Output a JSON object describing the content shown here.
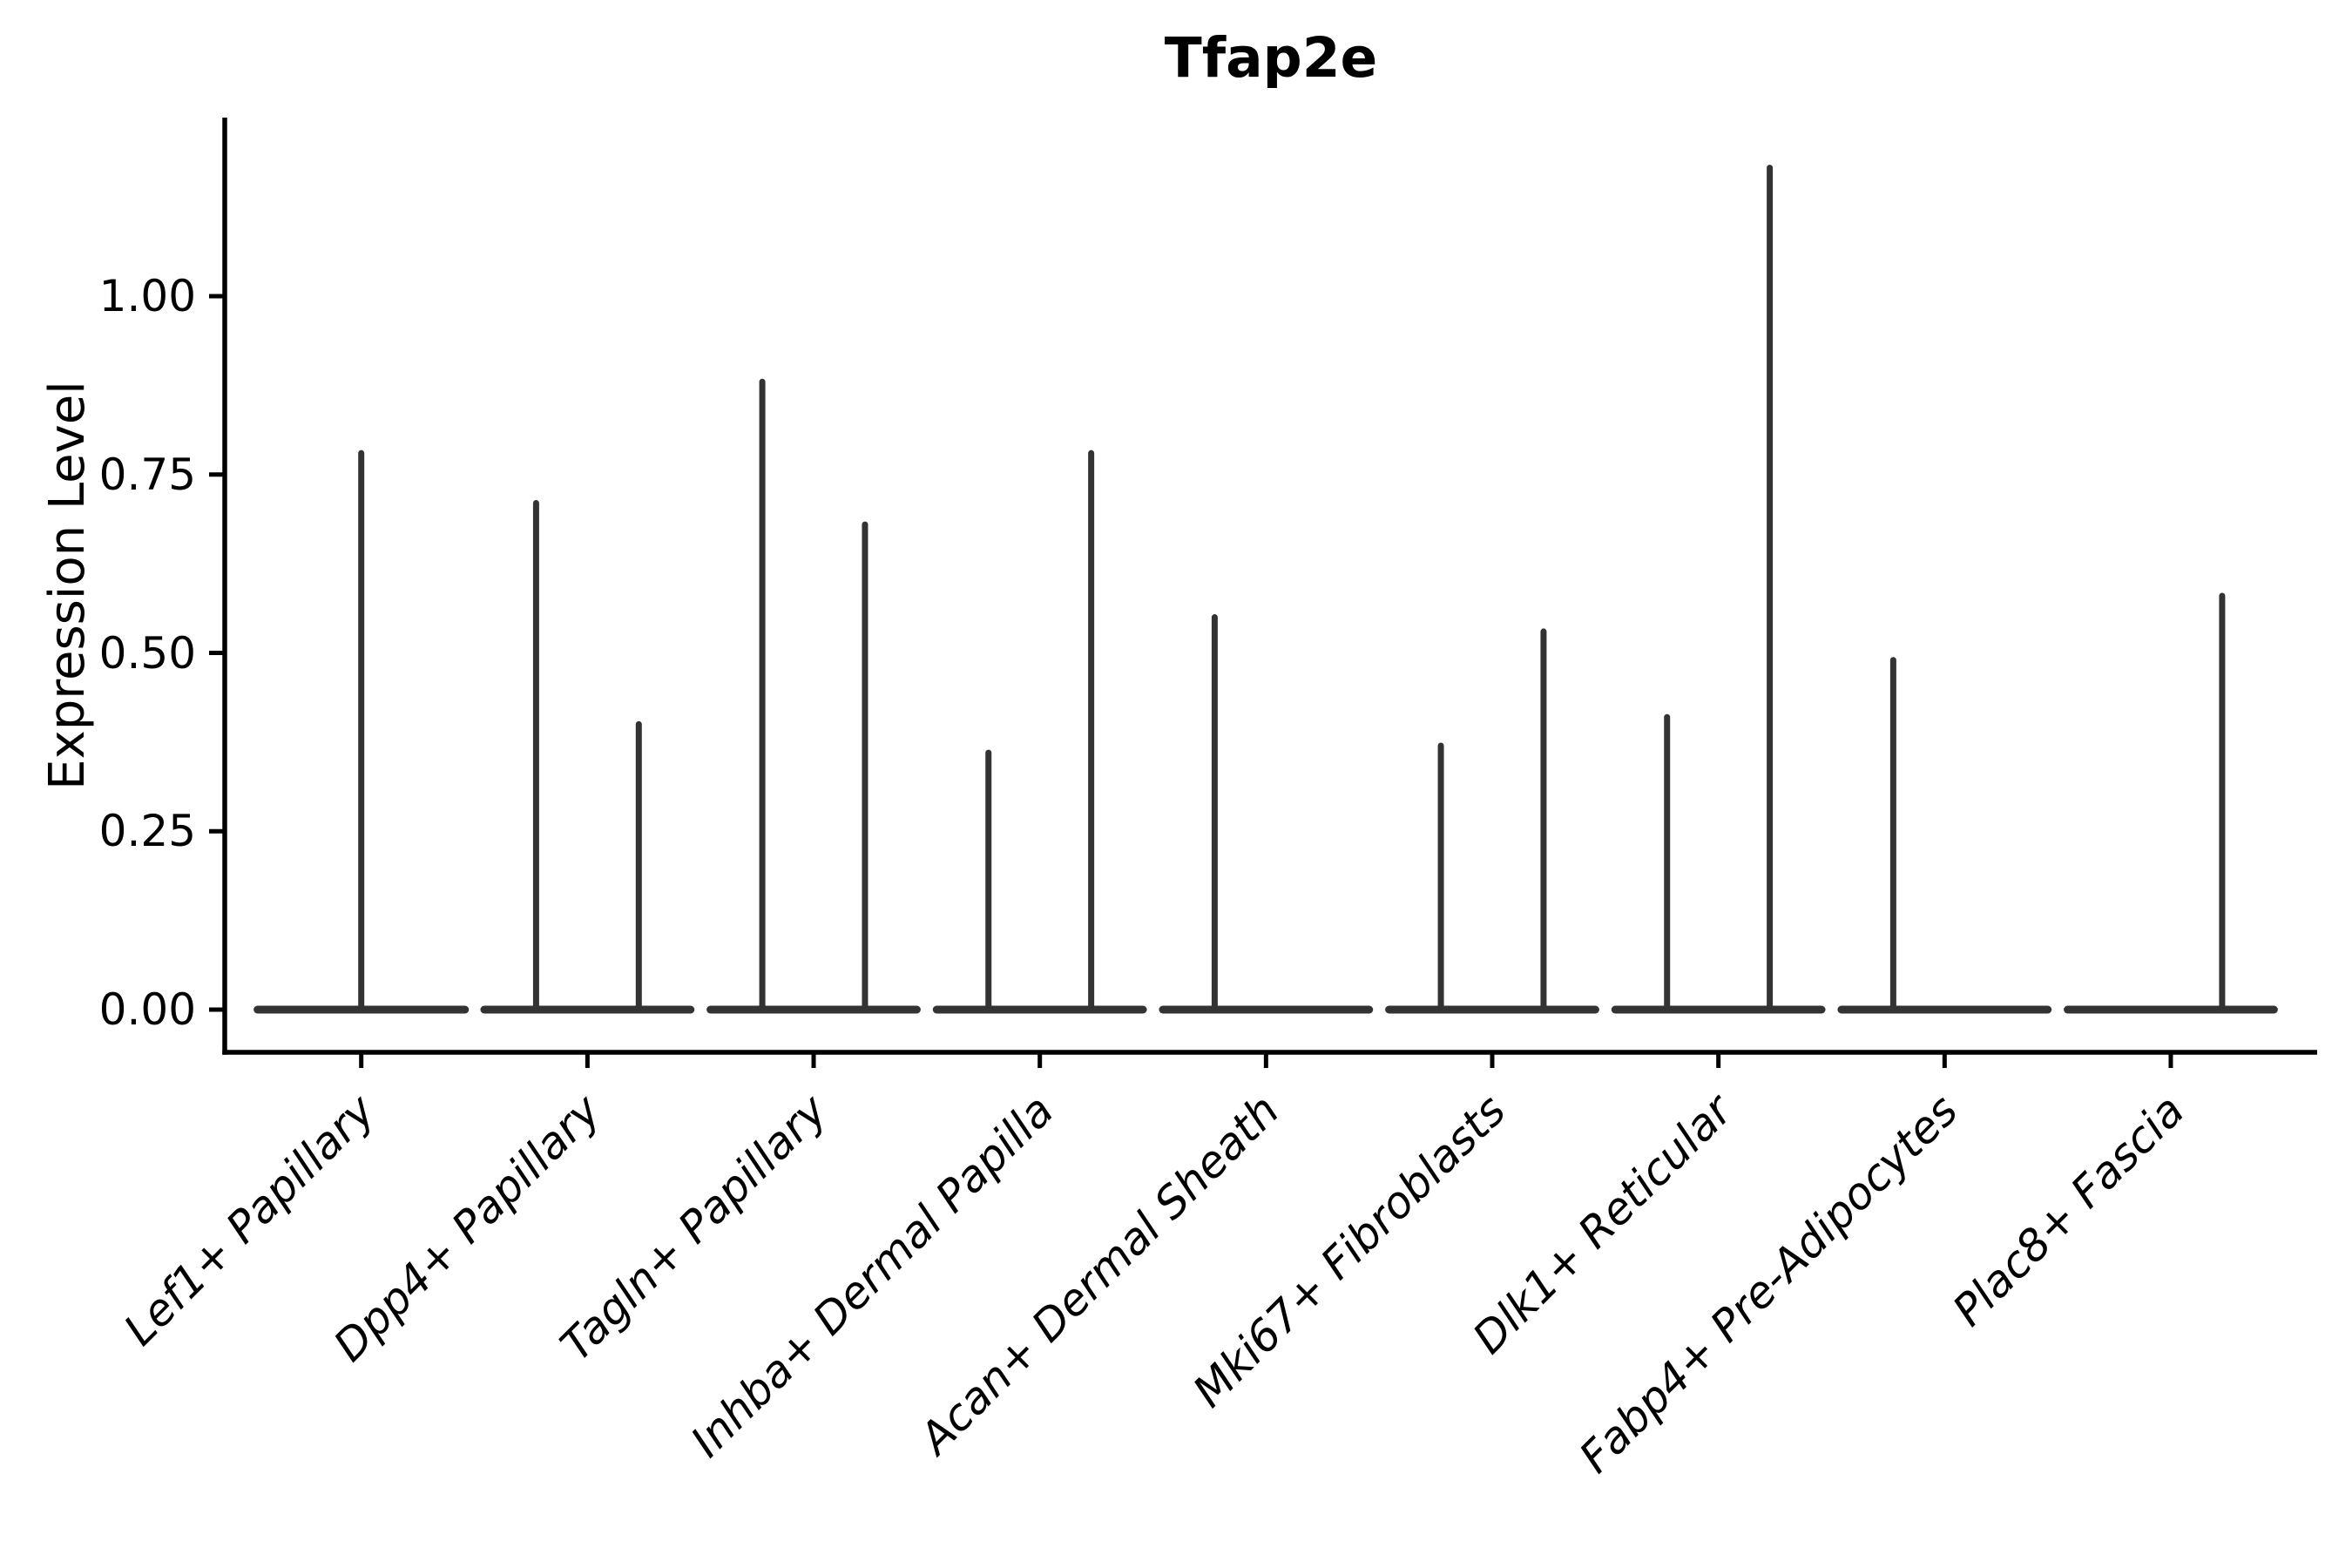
{
  "chart_data": {
    "type": "violin",
    "title": "Tfap2e",
    "ylabel": "Expression Level",
    "xlabel": "",
    "grid": false,
    "legend": "none",
    "ylim": [
      -0.06,
      1.25
    ],
    "yticks": [
      {
        "value": 0.0,
        "label": "0.00"
      },
      {
        "value": 0.25,
        "label": "0.25"
      },
      {
        "value": 0.5,
        "label": "0.50"
      },
      {
        "value": 0.75,
        "label": "0.75"
      },
      {
        "value": 1.0,
        "label": "1.00"
      }
    ],
    "categories": [
      "Lef1+ Papillary",
      "Dpp4+ Papillary",
      "Tagln+ Papillary",
      "Inhba+ Dermal Papilla",
      "Acan+ Dermal Sheath",
      "Mki67+ Fibroblasts",
      "Dlk1+ Reticular",
      "Fabp4+ Pre-Adipocytes",
      "Plac8+ Fascia"
    ],
    "groups": [
      {
        "label": "Lef1+ Papillary",
        "violins": [
          {
            "offset": 0,
            "width": 0.917,
            "max": 0.78
          }
        ]
      },
      {
        "label": "Dpp4+ Papillary",
        "violins": [
          {
            "offset": -0.227,
            "width": 0.458,
            "max": 0.71
          },
          {
            "offset": 0.227,
            "width": 0.458,
            "max": 0.4
          }
        ]
      },
      {
        "label": "Tagln+ Papillary",
        "violins": [
          {
            "offset": -0.227,
            "width": 0.458,
            "max": 0.88
          },
          {
            "offset": 0.227,
            "width": 0.458,
            "max": 0.68
          }
        ]
      },
      {
        "label": "Inhba+ Dermal Papilla",
        "violins": [
          {
            "offset": -0.227,
            "width": 0.458,
            "max": 0.36
          },
          {
            "offset": 0.227,
            "width": 0.458,
            "max": 0.78
          }
        ]
      },
      {
        "label": "Acan+ Dermal Sheath",
        "violins": [
          {
            "offset": -0.227,
            "width": 0.458,
            "max": 0.55
          },
          {
            "offset": 0.227,
            "width": 0.458,
            "max": 0.0
          }
        ]
      },
      {
        "label": "Mki67+ Fibroblasts",
        "violins": [
          {
            "offset": -0.227,
            "width": 0.458,
            "max": 0.37
          },
          {
            "offset": 0.227,
            "width": 0.458,
            "max": 0.53
          }
        ]
      },
      {
        "label": "Dlk1+ Reticular",
        "violins": [
          {
            "offset": -0.227,
            "width": 0.458,
            "max": 0.41
          },
          {
            "offset": 0.227,
            "width": 0.458,
            "max": 1.18
          }
        ]
      },
      {
        "label": "Fabp4+ Pre-Adipocytes",
        "violins": [
          {
            "offset": -0.227,
            "width": 0.458,
            "max": 0.49
          },
          {
            "offset": 0.227,
            "width": 0.458,
            "max": 0.0
          }
        ]
      },
      {
        "label": "Plac8+ Fascia",
        "violins": [
          {
            "offset": -0.227,
            "width": 0.458,
            "max": 0.0
          },
          {
            "offset": 0.227,
            "width": 0.458,
            "max": 0.58
          }
        ]
      }
    ],
    "colors": {
      "violin": "#333333",
      "axis": "#000000",
      "text": "#000000",
      "background": "#ffffff"
    }
  }
}
